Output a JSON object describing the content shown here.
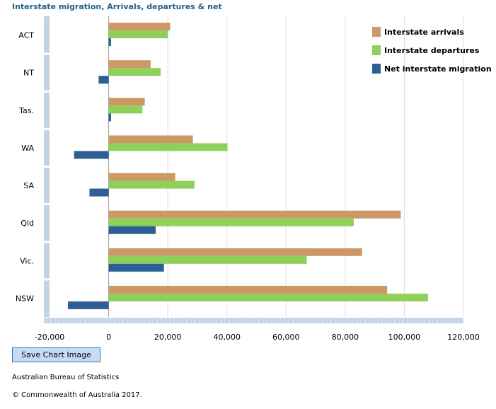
{
  "chart_data": {
    "type": "bar",
    "orientation": "horizontal",
    "title": "Interstate migration, Arrivals, departures & net",
    "categories": [
      "ACT",
      "NT",
      "Tas.",
      "WA",
      "SA",
      "Qld",
      "Vic.",
      "NSW"
    ],
    "series": [
      {
        "name": "Interstate arrivals",
        "color": "#cc9966",
        "values": [
          20800,
          14200,
          12200,
          28500,
          22500,
          98800,
          85700,
          94200
        ]
      },
      {
        "name": "Interstate departures",
        "color": "#8ed05a",
        "values": [
          20000,
          17600,
          11400,
          40200,
          29000,
          82900,
          67000,
          108000
        ]
      },
      {
        "name": "Net interstate migration",
        "color": "#2d5f94",
        "values": [
          800,
          -3400,
          800,
          -11700,
          -6500,
          15900,
          18700,
          -13800
        ]
      }
    ],
    "xlim": [
      -20000,
      120000
    ],
    "xticks": [
      -20000,
      0,
      20000,
      40000,
      60000,
      80000,
      100000,
      120000
    ],
    "xtick_labels": [
      "-20,000",
      "0",
      "20,000",
      "40,000",
      "60,000",
      "80,000",
      "100,000",
      "120,000"
    ],
    "grid": true,
    "legend_position": "top-right"
  },
  "controls": {
    "save_chart_label": "Save Chart Image"
  },
  "footer": {
    "source": "Australian Bureau of Statistics",
    "copyright": "© Commonwealth of Australia 2017."
  }
}
